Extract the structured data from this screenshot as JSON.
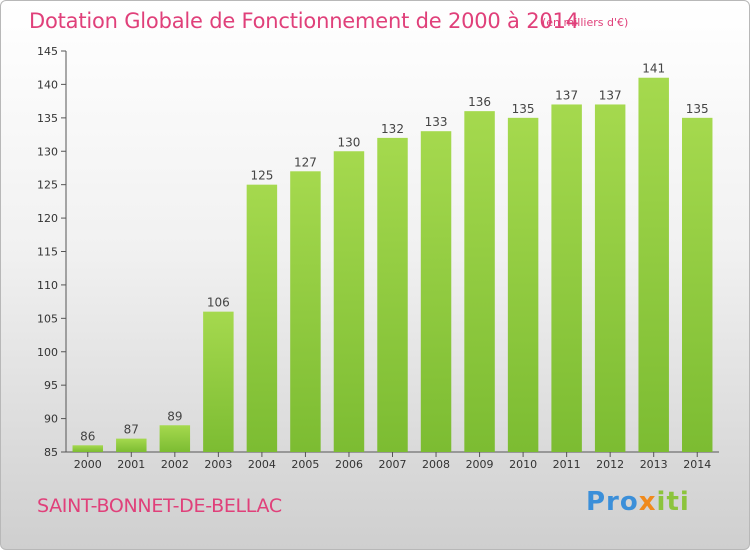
{
  "title": "Dotation Globale de Fonctionnement de 2000 à 2014",
  "unit": "(en milliers d'€)",
  "commune": "SAINT-BONNET-DE-BELLAC",
  "logo": {
    "text": "Proxiti",
    "parts": [
      "Pro",
      "x",
      "iti"
    ]
  },
  "colors": {
    "title": "#e0407a",
    "bar": "#7cbc32",
    "bar_light": "#a5d94e"
  },
  "chart_data": {
    "type": "bar",
    "categories": [
      "2000",
      "2001",
      "2002",
      "2003",
      "2004",
      "2005",
      "2006",
      "2007",
      "2008",
      "2009",
      "2010",
      "2011",
      "2012",
      "2013",
      "2014"
    ],
    "values": [
      86,
      87,
      89,
      106,
      125,
      127,
      130,
      132,
      133,
      136,
      135,
      137,
      137,
      141,
      135
    ],
    "title": "Dotation Globale de Fonctionnement de 2000 à 2014",
    "xlabel": "",
    "ylabel": "",
    "ylim": [
      85,
      145
    ],
    "yticks": [
      85,
      90,
      95,
      100,
      105,
      110,
      115,
      120,
      125,
      130,
      135,
      140,
      145
    ],
    "grid": false,
    "data_labels": true
  }
}
